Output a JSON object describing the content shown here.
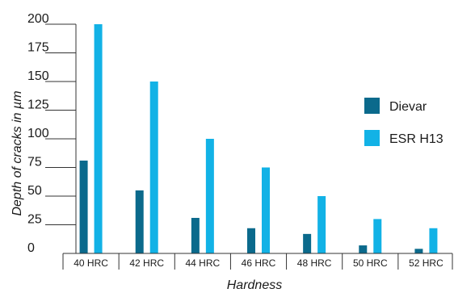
{
  "chart_data": {
    "type": "bar",
    "title": "",
    "xlabel": "Hardness",
    "ylabel": "Depth of cracks in µm",
    "categories": [
      "40 HRC",
      "42 HRC",
      "44 HRC",
      "46 HRC",
      "48 HRC",
      "50 HRC",
      "52 HRC"
    ],
    "series": [
      {
        "name": "Dievar",
        "color": "#0b6a8c",
        "values": [
          81,
          55,
          31,
          22,
          17,
          7,
          4
        ]
      },
      {
        "name": "ESR H13",
        "color": "#12b2e6",
        "values": [
          200,
          150,
          100,
          75,
          50,
          30,
          22
        ]
      }
    ],
    "yticks": [
      0,
      25,
      50,
      75,
      100,
      125,
      150,
      175,
      200
    ],
    "ylim": [
      0,
      200
    ],
    "grid": false,
    "legend_position": "right"
  }
}
